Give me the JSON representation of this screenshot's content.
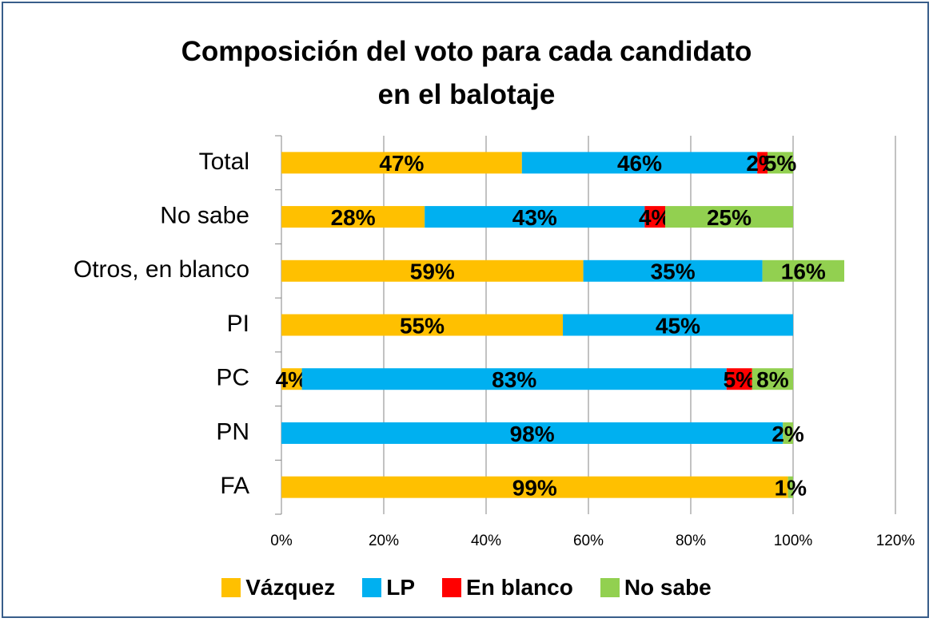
{
  "chart_data": {
    "type": "stacked_bar_horizontal",
    "title": "Composición del voto para cada candidato  en el balotaje",
    "categories": [
      "Total",
      "No sabe",
      "Otros, en blanco",
      "PI",
      "PC",
      "PN",
      "FA"
    ],
    "series": [
      {
        "name": "Vázquez",
        "color": "#FFC000",
        "values": [
          47,
          28,
          59,
          55,
          4,
          null,
          99
        ],
        "value_labels": [
          "47%",
          "28%",
          "59%",
          "55%",
          "4%",
          null,
          "99%"
        ]
      },
      {
        "name": "LP",
        "color": "#00B0F0",
        "values": [
          46,
          43,
          35,
          45,
          83,
          98,
          null
        ],
        "value_labels": [
          "46%",
          "43%",
          "35%",
          "45%",
          "83%",
          "98%",
          null
        ]
      },
      {
        "name": "En blanco",
        "color": "#FF0000",
        "values": [
          2,
          4,
          null,
          null,
          5,
          null,
          null
        ],
        "value_labels": [
          "2%",
          "4%",
          null,
          null,
          "5%",
          null,
          null
        ]
      },
      {
        "name": "No sabe",
        "color": "#92D050",
        "values": [
          5,
          25,
          16,
          null,
          8,
          2,
          1
        ],
        "value_labels": [
          "5%",
          "25%",
          "16%",
          null,
          "8%",
          "2%",
          "1%"
        ]
      }
    ],
    "xlim": [
      0,
      120
    ],
    "xticks": [
      {
        "value": 0,
        "label": "0%"
      },
      {
        "value": 20,
        "label": "20%"
      },
      {
        "value": 40,
        "label": "40%"
      },
      {
        "value": 60,
        "label": "60%"
      },
      {
        "value": 80,
        "label": "80%"
      },
      {
        "value": 100,
        "label": "100%"
      },
      {
        "value": 120,
        "label": "120%"
      }
    ],
    "grid": true,
    "legend": "bottom"
  }
}
